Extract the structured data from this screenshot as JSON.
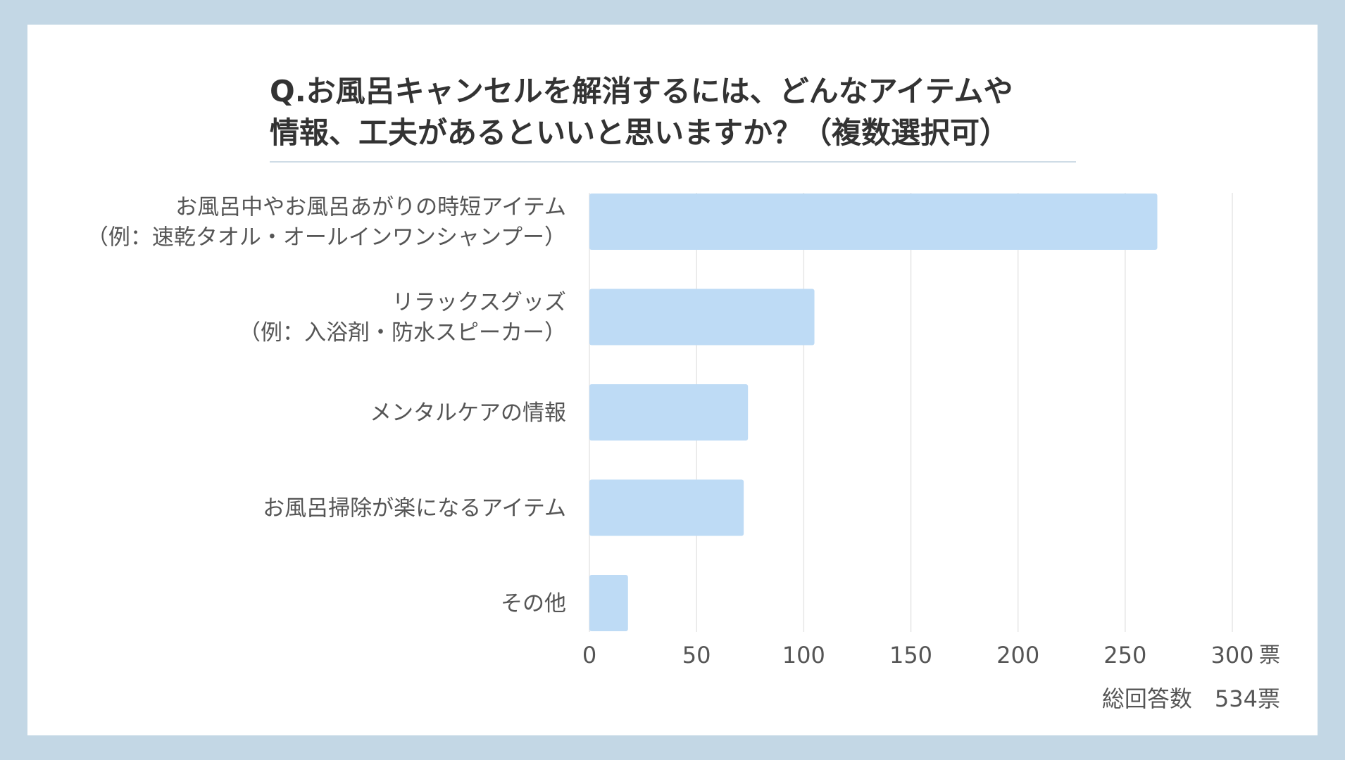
{
  "chart_data": {
    "type": "bar",
    "orientation": "horizontal",
    "title": "Q.お風呂キャンセルを解消するには、どんなアイテムや情報、工夫があるといいと思いますか？（複数選択可）",
    "title_lines": [
      "Q.お風呂キャンセルを解消するには、どんなアイテムや",
      "情報、工夫があるといいと思いますか？（複数選択可）"
    ],
    "categories": [
      "お風呂中やお風呂あがりの時短アイテム（例：速乾タオル・オールインワンシャンプー）",
      "リラックスグッズ（例：入浴剤・防水スピーカー）",
      "メンタルケアの情報",
      "お風呂掃除が楽になるアイテム",
      "その他"
    ],
    "category_lines": [
      [
        "お風呂中やお風呂あがりの時短アイテム",
        "（例：速乾タオル・オールインワンシャンプー）"
      ],
      [
        "リラックスグッズ",
        "（例：入浴剤・防水スピーカー）"
      ],
      [
        "メンタルケアの情報"
      ],
      [
        "お風呂掃除が楽になるアイテム"
      ],
      [
        "その他"
      ]
    ],
    "values": [
      265,
      105,
      74,
      72,
      18
    ],
    "xlim": [
      0,
      300
    ],
    "xticks": [
      0,
      50,
      100,
      150,
      200,
      250,
      300
    ],
    "xunit": "票",
    "grid": true,
    "bar_color": "#bedbf5",
    "total_label": "総回答数　534票"
  },
  "colors": {
    "background": "#c3d7e5",
    "card": "#ffffff",
    "text": "#333333",
    "grid": "#e6e6e6"
  }
}
